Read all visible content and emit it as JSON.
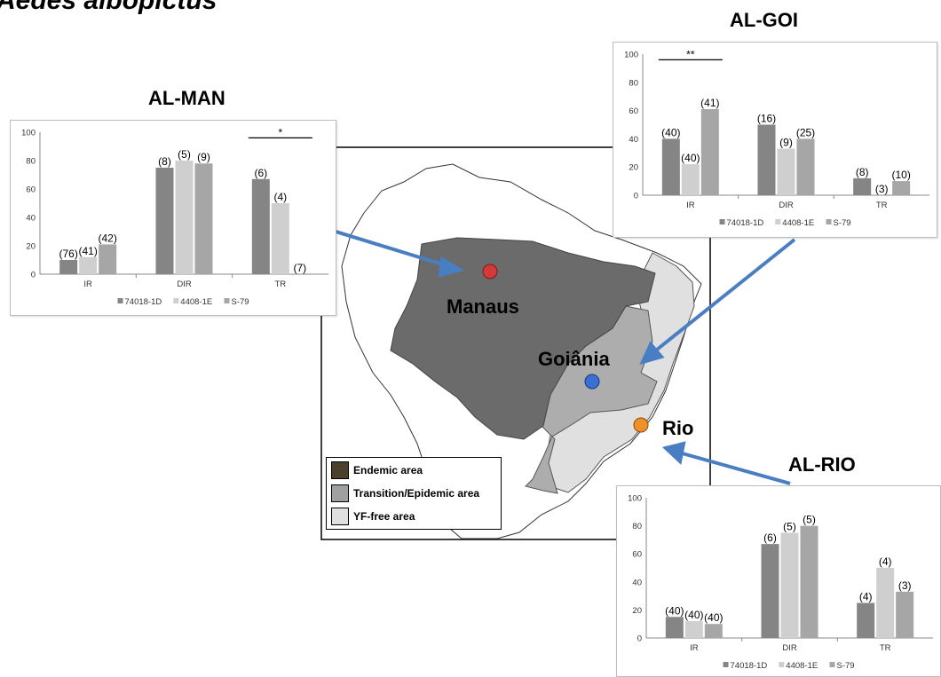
{
  "main_title": "Aedes albopictus",
  "colors": {
    "bar_series": [
      "#858585",
      "#cfcfcf",
      "#a6a6a6"
    ],
    "endemic_map": "#6b6b6b",
    "transition_map": "#adadad",
    "free_map": "#e0e0e0",
    "arrow": "#4a7ec2",
    "dot_manaus": "#d23a3a",
    "dot_goiania": "#3a6fd4",
    "dot_rio": "#f0902a"
  },
  "cities": {
    "manaus": "Manaus",
    "goiania": "Goiânia",
    "rio": "Rio"
  },
  "legend": {
    "items": [
      {
        "label": "Endemic area",
        "color": "#4a402c"
      },
      {
        "label": "Transition/Epidemic area",
        "color": "#a0a0a0"
      },
      {
        "label": "YF-free area",
        "color": "#e0e0e0"
      }
    ]
  },
  "chart_data": [
    {
      "type": "bar",
      "title": "AL-MAN",
      "categories": [
        "IR",
        "DIR",
        "TR"
      ],
      "series": [
        {
          "name": "74018-1D",
          "values": [
            10,
            75,
            67
          ],
          "labels": [
            "(76)",
            "(8)",
            "(6)"
          ]
        },
        {
          "name": "4408-1E",
          "values": [
            12,
            80,
            50
          ],
          "labels": [
            "(41)",
            "(5)",
            "(4)"
          ]
        },
        {
          "name": "S-79",
          "values": [
            21,
            78,
            0
          ],
          "labels": [
            "(42)",
            "(9)",
            "(7)"
          ]
        }
      ],
      "ylim": [
        0,
        100
      ],
      "yticks": [
        "0",
        "20",
        "40",
        "60",
        "80",
        "100"
      ],
      "annotation": {
        "text": "*",
        "from_category": 2,
        "to_category": 2
      },
      "legend_position": "bottom"
    },
    {
      "type": "bar",
      "title": "AL-GOI",
      "categories": [
        "IR",
        "DIR",
        "TR"
      ],
      "series": [
        {
          "name": "74018-1D",
          "values": [
            40,
            50,
            12
          ],
          "labels": [
            "(40)",
            "(16)",
            "(8)"
          ]
        },
        {
          "name": "4408-1E",
          "values": [
            22,
            33,
            0
          ],
          "labels": [
            "(40)",
            "(9)",
            "(3)"
          ]
        },
        {
          "name": "S-79",
          "values": [
            61,
            40,
            10
          ],
          "labels": [
            "(41)",
            "(25)",
            "(10)"
          ]
        }
      ],
      "ylim": [
        0,
        100
      ],
      "yticks": [
        "0",
        "20",
        "40",
        "60",
        "80",
        "100"
      ],
      "annotation": {
        "text": "**",
        "from_category": 0,
        "to_category": 0
      },
      "legend_position": "bottom"
    },
    {
      "type": "bar",
      "title": "AL-RIO",
      "categories": [
        "IR",
        "DIR",
        "TR"
      ],
      "series": [
        {
          "name": "74018-1D",
          "values": [
            15,
            67,
            25
          ],
          "labels": [
            "(40)",
            "(6)",
            "(4)"
          ]
        },
        {
          "name": "4408-1E",
          "values": [
            12,
            75,
            50
          ],
          "labels": [
            "(40)",
            "(5)",
            "(4)"
          ]
        },
        {
          "name": "S-79",
          "values": [
            10,
            80,
            33
          ],
          "labels": [
            "(40)",
            "(5)",
            "(3)"
          ]
        }
      ],
      "ylim": [
        0,
        100
      ],
      "yticks": [
        "0",
        "20",
        "40",
        "60",
        "80",
        "100"
      ],
      "legend_position": "bottom"
    }
  ]
}
